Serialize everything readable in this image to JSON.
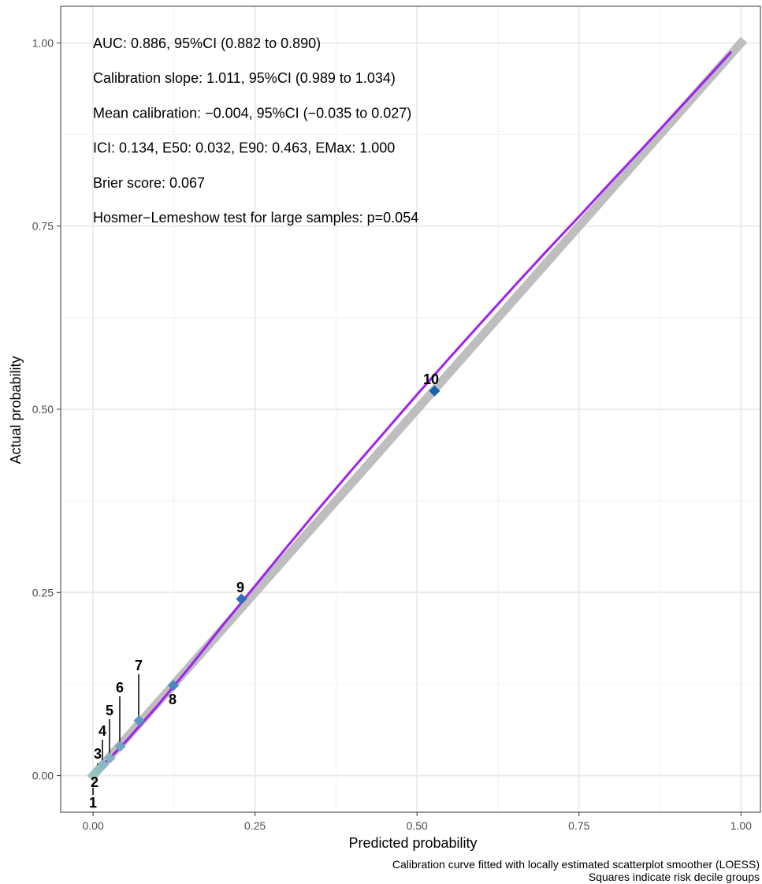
{
  "chart_data": {
    "type": "line",
    "xlabel": "Predicted probability",
    "ylabel": "Actual probability",
    "xlim": [
      -0.05,
      1.03
    ],
    "ylim": [
      -0.05,
      1.05
    ],
    "x_ticks": [
      0.0,
      0.25,
      0.5,
      0.75,
      1.0
    ],
    "y_ticks": [
      0.0,
      0.25,
      0.5,
      0.75,
      1.0
    ],
    "x_tick_labels": [
      "0.00",
      "0.25",
      "0.50",
      "0.75",
      "1.00"
    ],
    "y_tick_labels": [
      "0.00",
      "0.25",
      "0.50",
      "0.75",
      "1.00"
    ],
    "grid": true,
    "annotations": [
      "AUC: 0.886, 95%CI (0.882 to 0.890)",
      "Calibration slope: 1.011, 95%CI (0.989 to 1.034)",
      "Mean calibration: −0.004, 95%CI (−0.035 to 0.027)",
      "ICI: 0.134, E50: 0.032, E90: 0.463, EMax: 1.000",
      "Brier score: 0.067",
      "Hosmer−Lemeshow test for large samples: p=0.054"
    ],
    "caption": [
      "Calibration curve fitted with locally estimated scatterplot smoother (LOESS)",
      "Squares indicate risk decile groups"
    ],
    "reference_line": {
      "x": [
        0.0,
        1.0
      ],
      "y": [
        0.0,
        1.0
      ],
      "color": "#bebebe"
    },
    "loess_curve": {
      "color": "#a020f0",
      "x": [
        0.0,
        0.05,
        0.1,
        0.15,
        0.2,
        0.25,
        0.3,
        0.35,
        0.4,
        0.45,
        0.5,
        0.55,
        0.6,
        0.65,
        0.7,
        0.75,
        0.8,
        0.85,
        0.9,
        0.95,
        0.985
      ],
      "y": [
        0.0,
        0.046,
        0.096,
        0.149,
        0.205,
        0.259,
        0.313,
        0.366,
        0.418,
        0.469,
        0.52,
        0.57,
        0.619,
        0.668,
        0.716,
        0.763,
        0.811,
        0.858,
        0.906,
        0.954,
        0.988
      ]
    },
    "deciles": [
      {
        "label": "1",
        "x": 0.001,
        "y": 0.001,
        "color": "#99c8bd"
      },
      {
        "label": "2",
        "x": 0.004,
        "y": 0.004,
        "color": "#97c5bf"
      },
      {
        "label": "3",
        "x": 0.009,
        "y": 0.009,
        "color": "#91bfc1"
      },
      {
        "label": "4",
        "x": 0.016,
        "y": 0.015,
        "color": "#8ab8c2"
      },
      {
        "label": "5",
        "x": 0.026,
        "y": 0.024,
        "color": "#7fb0c4"
      },
      {
        "label": "6",
        "x": 0.042,
        "y": 0.04,
        "color": "#72a5c5"
      },
      {
        "label": "7",
        "x": 0.071,
        "y": 0.075,
        "color": "#6096c5"
      },
      {
        "label": "8",
        "x": 0.124,
        "y": 0.123,
        "color": "#4a86c2"
      },
      {
        "label": "9",
        "x": 0.229,
        "y": 0.241,
        "color": "#2f6fb8"
      },
      {
        "label": "10",
        "x": 0.527,
        "y": 0.525,
        "color": "#1660ac"
      }
    ]
  }
}
